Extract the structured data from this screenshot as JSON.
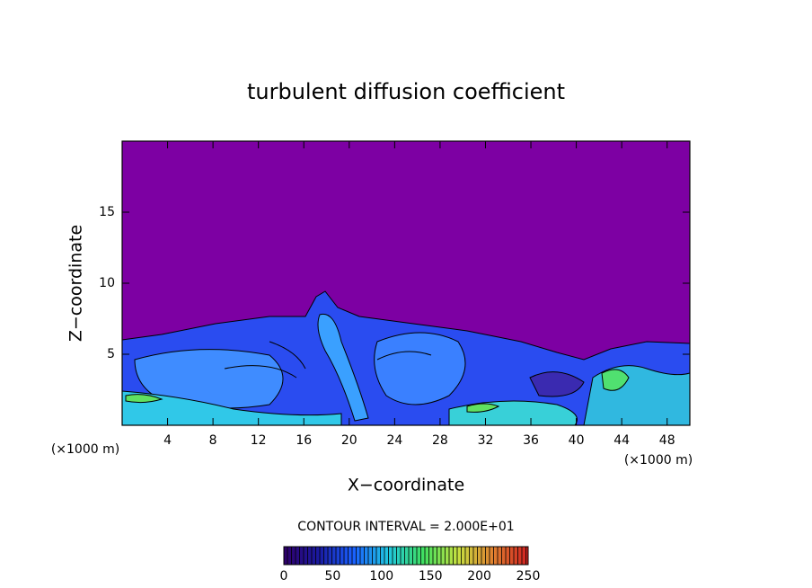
{
  "chart_data": {
    "type": "contour",
    "title": "turbulent diffusion coefficient",
    "xlabel": "X−coordinate",
    "ylabel": "Z−coordinate",
    "x_unit_label": "(×1000 m)",
    "xlim": [
      0,
      50
    ],
    "xticks": [
      4,
      8,
      12,
      16,
      20,
      24,
      28,
      32,
      36,
      40,
      44,
      48
    ],
    "ylim": [
      0,
      20
    ],
    "yticks": [
      5,
      10,
      15
    ],
    "colorbar": {
      "label": "CONTOUR INTERVAL = 2.000E+01",
      "lim": [
        0,
        250
      ],
      "ticks": [
        0,
        50,
        100,
        150,
        200,
        250
      ],
      "colors": [
        "#30006a",
        "#1a1aa0",
        "#1a60ff",
        "#20c8e0",
        "#40e060",
        "#c8e040",
        "#e08030",
        "#d02020"
      ]
    }
  }
}
